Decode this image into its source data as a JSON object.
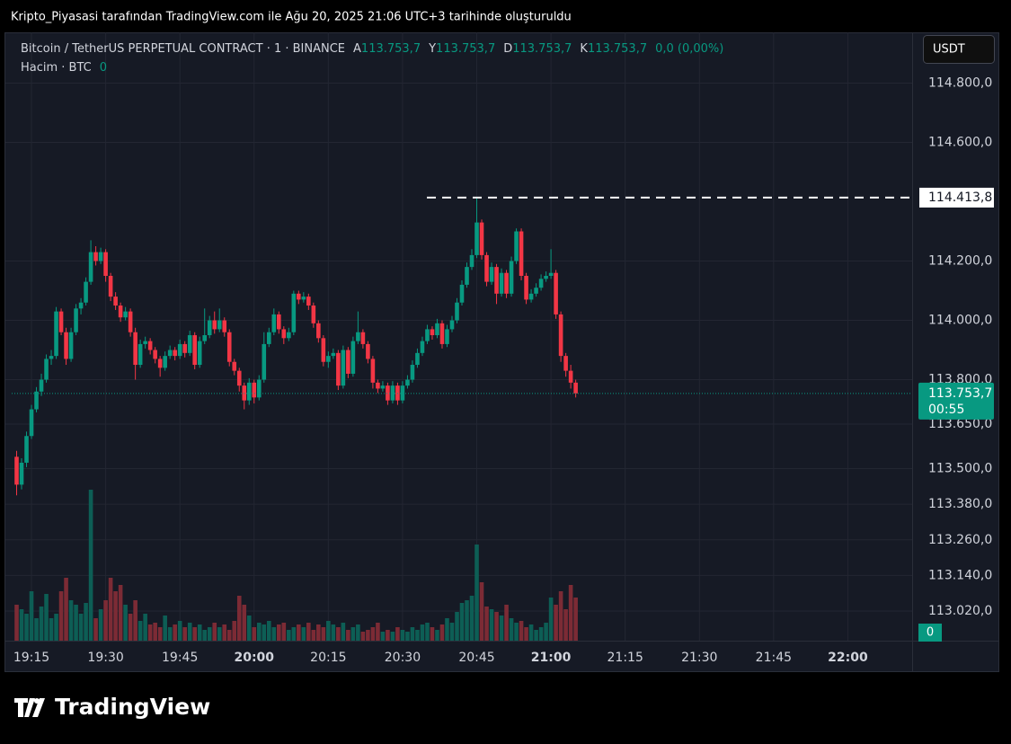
{
  "header": {
    "title": "Kripto_Piyasasi tarafından TradingView.com ile Ağu 20, 2025 21:06 UTC+3 tarihinde oluşturuldu"
  },
  "footer": {
    "brand": "TradingView"
  },
  "chart_data": {
    "type": "candlestick",
    "symbol": "Bitcoin / TetherUS PERPETUAL CONTRACT · 1 · BINANCE",
    "ohlc_legend": [
      {
        "key": "A",
        "value": "113.753,7"
      },
      {
        "key": "Y",
        "value": "113.753,7"
      },
      {
        "key": "D",
        "value": "113.753,7"
      },
      {
        "key": "K",
        "value": "113.753,7"
      }
    ],
    "change": "0,0 (0,00%)",
    "volume_legend": {
      "name": "Hacim · BTC",
      "value": "0"
    },
    "currency": "USDT",
    "up_color": "#089981",
    "down_color": "#f23645",
    "volume_up_color": "#0d5e55",
    "volume_down_color": "#7c2b35",
    "grid": true,
    "xlim": [
      "19:11",
      "22:13"
    ],
    "xticks": [
      "19:15",
      "19:30",
      "19:45",
      "20:00",
      "20:15",
      "20:30",
      "20:45",
      "21:00",
      "21:15",
      "21:30",
      "21:45",
      "22:00"
    ],
    "ylim": [
      112920,
      114965
    ],
    "yticks": [
      {
        "value": 114800,
        "label": "114.800,0"
      },
      {
        "value": 114600,
        "label": "114.600,0"
      },
      {
        "value": 114200,
        "label": "114.200,0"
      },
      {
        "value": 114000,
        "label": "114.000,0"
      },
      {
        "value": 113800,
        "label": "113.800,0"
      },
      {
        "value": 113650,
        "label": "113.650,0"
      },
      {
        "value": 113500,
        "label": "113.500,0"
      },
      {
        "value": 113380,
        "label": "113.380,0"
      },
      {
        "value": 113260,
        "label": "113.260,0"
      },
      {
        "value": 113140,
        "label": "113.140,0"
      },
      {
        "value": 113020,
        "label": "113.020,0"
      }
    ],
    "high_marker": {
      "value": 114413.8,
      "label": "114.413,8"
    },
    "last_price": {
      "value": 113753.7,
      "label": "113.753,7"
    },
    "countdown": "00:55",
    "x": [
      "19:12",
      "19:13",
      "19:14",
      "19:15",
      "19:16",
      "19:17",
      "19:18",
      "19:19",
      "19:20",
      "19:21",
      "19:22",
      "19:23",
      "19:24",
      "19:25",
      "19:26",
      "19:27",
      "19:28",
      "19:29",
      "19:30",
      "19:31",
      "19:32",
      "19:33",
      "19:34",
      "19:35",
      "19:36",
      "19:37",
      "19:38",
      "19:39",
      "19:40",
      "19:41",
      "19:42",
      "19:43",
      "19:44",
      "19:45",
      "19:46",
      "19:47",
      "19:48",
      "19:49",
      "19:50",
      "19:51",
      "19:52",
      "19:53",
      "19:54",
      "19:55",
      "19:56",
      "19:57",
      "19:58",
      "19:59",
      "20:00",
      "20:01",
      "20:02",
      "20:03",
      "20:04",
      "20:05",
      "20:06",
      "20:07",
      "20:08",
      "20:09",
      "20:10",
      "20:11",
      "20:12",
      "20:13",
      "20:14",
      "20:15",
      "20:16",
      "20:17",
      "20:18",
      "20:19",
      "20:20",
      "20:21",
      "20:22",
      "20:23",
      "20:24",
      "20:25",
      "20:26",
      "20:27",
      "20:28",
      "20:29",
      "20:30",
      "20:31",
      "20:32",
      "20:33",
      "20:34",
      "20:35",
      "20:36",
      "20:37",
      "20:38",
      "20:39",
      "20:40",
      "20:41",
      "20:42",
      "20:43",
      "20:44",
      "20:45",
      "20:46",
      "20:47",
      "20:48",
      "20:49",
      "20:50",
      "20:51",
      "20:52",
      "20:53",
      "20:54",
      "20:55",
      "20:56",
      "20:57",
      "20:58",
      "20:59",
      "21:00",
      "21:01",
      "21:02",
      "21:03",
      "21:04",
      "21:05"
    ],
    "ohlc": [
      [
        113540,
        113560,
        113410,
        113446
      ],
      [
        113446,
        113535,
        113430,
        113520
      ],
      [
        113520,
        113625,
        113505,
        113610
      ],
      [
        113610,
        113715,
        113600,
        113700
      ],
      [
        113700,
        113775,
        113690,
        113760
      ],
      [
        113760,
        113820,
        113745,
        113800
      ],
      [
        113800,
        113885,
        113790,
        113870
      ],
      [
        113870,
        113900,
        113850,
        113880
      ],
      [
        113880,
        114045,
        113870,
        114030
      ],
      [
        114030,
        114040,
        113950,
        113960
      ],
      [
        113960,
        113975,
        113850,
        113870
      ],
      [
        113870,
        113975,
        113860,
        113960
      ],
      [
        113960,
        114055,
        113950,
        114040
      ],
      [
        114040,
        114075,
        114020,
        114060
      ],
      [
        114060,
        114145,
        114050,
        114130
      ],
      [
        114130,
        114270,
        114120,
        114230
      ],
      [
        114230,
        114250,
        114185,
        114200
      ],
      [
        114200,
        114245,
        114190,
        114230
      ],
      [
        114230,
        114240,
        114130,
        114150
      ],
      [
        114150,
        114160,
        114065,
        114080
      ],
      [
        114080,
        114095,
        114035,
        114050
      ],
      [
        114050,
        114060,
        113995,
        114010
      ],
      [
        114010,
        114045,
        114000,
        114030
      ],
      [
        114030,
        114040,
        113945,
        113960
      ],
      [
        113960,
        113975,
        113800,
        113850
      ],
      [
        113850,
        113935,
        113840,
        113920
      ],
      [
        113920,
        113945,
        113905,
        113930
      ],
      [
        113930,
        113940,
        113885,
        113900
      ],
      [
        113900,
        113910,
        113855,
        113870
      ],
      [
        113870,
        113880,
        113810,
        113840
      ],
      [
        113840,
        113895,
        113830,
        113880
      ],
      [
        113880,
        113915,
        113870,
        113900
      ],
      [
        113900,
        113910,
        113865,
        113880
      ],
      [
        113880,
        113935,
        113870,
        113920
      ],
      [
        113920,
        113930,
        113875,
        113890
      ],
      [
        113890,
        113965,
        113880,
        113950
      ],
      [
        113950,
        113960,
        113835,
        113850
      ],
      [
        113850,
        113945,
        113840,
        113930
      ],
      [
        113930,
        114040,
        113920,
        113950
      ],
      [
        113950,
        114015,
        113940,
        114000
      ],
      [
        114000,
        114030,
        113955,
        113970
      ],
      [
        113970,
        114040,
        113960,
        114000
      ],
      [
        114000,
        114010,
        113945,
        113960
      ],
      [
        113960,
        113970,
        113845,
        113860
      ],
      [
        113860,
        113870,
        113815,
        113830
      ],
      [
        113830,
        113840,
        113760,
        113780
      ],
      [
        113780,
        113790,
        113700,
        113730
      ],
      [
        113730,
        113805,
        113715,
        113790
      ],
      [
        113790,
        113800,
        113720,
        113740
      ],
      [
        113740,
        113815,
        113730,
        113800
      ],
      [
        113800,
        113960,
        113790,
        113920
      ],
      [
        113920,
        113975,
        113910,
        113960
      ],
      [
        113960,
        114040,
        113950,
        114020
      ],
      [
        114020,
        114030,
        113955,
        113970
      ],
      [
        113970,
        113980,
        113920,
        113940
      ],
      [
        113940,
        113975,
        113930,
        113960
      ],
      [
        113960,
        114100,
        113950,
        114090
      ],
      [
        114090,
        114100,
        114055,
        114070
      ],
      [
        114070,
        114095,
        114060,
        114080
      ],
      [
        114080,
        114090,
        114035,
        114050
      ],
      [
        114050,
        114060,
        113975,
        113990
      ],
      [
        113990,
        114000,
        113925,
        113940
      ],
      [
        113940,
        113950,
        113845,
        113860
      ],
      [
        113860,
        113895,
        113840,
        113880
      ],
      [
        113880,
        113905,
        113870,
        113890
      ],
      [
        113890,
        113900,
        113765,
        113780
      ],
      [
        113780,
        113915,
        113770,
        113900
      ],
      [
        113900,
        113910,
        113805,
        113820
      ],
      [
        113820,
        113945,
        113810,
        113930
      ],
      [
        113930,
        114030,
        113920,
        113960
      ],
      [
        113960,
        113970,
        113905,
        113920
      ],
      [
        113920,
        113930,
        113855,
        113870
      ],
      [
        113870,
        113880,
        113770,
        113790
      ],
      [
        113790,
        113800,
        113755,
        113770
      ],
      [
        113770,
        113795,
        113760,
        113780
      ],
      [
        113780,
        113790,
        113715,
        113730
      ],
      [
        113730,
        113795,
        113720,
        113780
      ],
      [
        113780,
        113790,
        113715,
        113730
      ],
      [
        113730,
        113795,
        113720,
        113780
      ],
      [
        113780,
        113815,
        113770,
        113800
      ],
      [
        113800,
        113865,
        113790,
        113850
      ],
      [
        113850,
        113905,
        113840,
        113890
      ],
      [
        113890,
        113945,
        113880,
        113930
      ],
      [
        113930,
        113985,
        113920,
        113970
      ],
      [
        113970,
        113980,
        113935,
        113950
      ],
      [
        113950,
        114005,
        113940,
        113990
      ],
      [
        113990,
        114000,
        113905,
        113920
      ],
      [
        113920,
        113985,
        113910,
        113970
      ],
      [
        113970,
        114015,
        113960,
        114000
      ],
      [
        114000,
        114075,
        113990,
        114060
      ],
      [
        114060,
        114135,
        114050,
        114120
      ],
      [
        114120,
        114195,
        114110,
        114180
      ],
      [
        114180,
        114240,
        114170,
        114220
      ],
      [
        114220,
        114413.8,
        114210,
        114330
      ],
      [
        114330,
        114340,
        114205,
        114220
      ],
      [
        114220,
        114230,
        114115,
        114130
      ],
      [
        114130,
        114195,
        114120,
        114180
      ],
      [
        114180,
        114190,
        114055,
        114090
      ],
      [
        114090,
        114175,
        114080,
        114160
      ],
      [
        114160,
        114170,
        114075,
        114090
      ],
      [
        114090,
        114215,
        114080,
        114200
      ],
      [
        114200,
        114310,
        114190,
        114300
      ],
      [
        114300,
        114310,
        114135,
        114150
      ],
      [
        114150,
        114160,
        114055,
        114070
      ],
      [
        114070,
        114105,
        114060,
        114090
      ],
      [
        114090,
        114125,
        114080,
        114110
      ],
      [
        114110,
        114155,
        114100,
        114140
      ],
      [
        114140,
        114165,
        114130,
        114150
      ],
      [
        114150,
        114240,
        114140,
        114160
      ],
      [
        114160,
        114170,
        114005,
        114020
      ],
      [
        114020,
        114030,
        113860,
        113880
      ],
      [
        113880,
        113890,
        113810,
        113830
      ],
      [
        113830,
        113850,
        113770,
        113790
      ],
      [
        113790,
        113800,
        113740,
        113753.7
      ]
    ],
    "volumes": [
      40,
      35,
      30,
      55,
      25,
      38,
      52,
      25,
      30,
      55,
      70,
      45,
      40,
      30,
      42,
      168,
      25,
      35,
      45,
      70,
      55,
      62,
      40,
      30,
      45,
      22,
      30,
      18,
      20,
      15,
      28,
      15,
      18,
      22,
      15,
      20,
      15,
      18,
      12,
      15,
      20,
      15,
      18,
      12,
      22,
      50,
      40,
      28,
      15,
      20,
      18,
      22,
      15,
      18,
      20,
      12,
      15,
      18,
      15,
      20,
      12,
      18,
      15,
      22,
      18,
      15,
      20,
      12,
      15,
      18,
      10,
      12,
      15,
      20,
      10,
      12,
      10,
      15,
      12,
      10,
      15,
      12,
      18,
      20,
      15,
      12,
      18,
      25,
      20,
      32,
      42,
      45,
      50,
      107,
      65,
      38,
      35,
      32,
      28,
      40,
      25,
      20,
      22,
      15,
      18,
      12,
      15,
      20,
      48,
      40,
      55,
      35,
      62,
      48
    ]
  }
}
